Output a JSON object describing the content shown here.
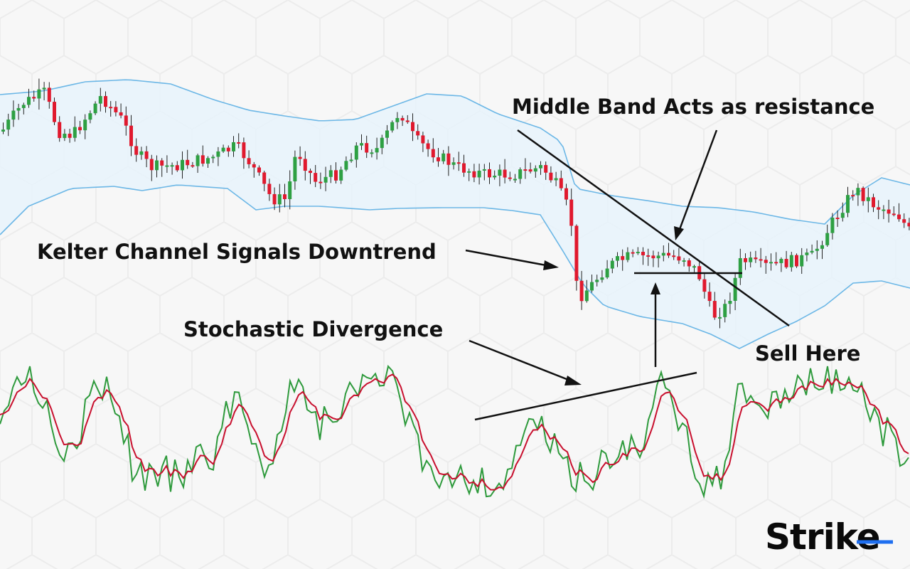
{
  "chart_data": {
    "type": "line",
    "description_panels": [
      "price candlesticks with Keltner channel",
      "stochastic oscillator"
    ],
    "annotations": {
      "middle_band": "Middle Band Acts as resistance",
      "keltner": "Kelter Channel  Signals Downtrend",
      "stochastic": "Stochastic Divergence",
      "sell": "Sell Here"
    },
    "grid": false,
    "legend": "none"
  },
  "brand": {
    "name_main": "Stri",
    "name_tail": "ke",
    "accent": "#1f6ff0"
  },
  "colors": {
    "bullish": "#2ea043",
    "bearish": "#e0192e",
    "band_line": "#6cb7e6",
    "band_fill": "#e8f3fc",
    "fast_line": "#2e9a3c",
    "slow_line": "#c8102e"
  }
}
